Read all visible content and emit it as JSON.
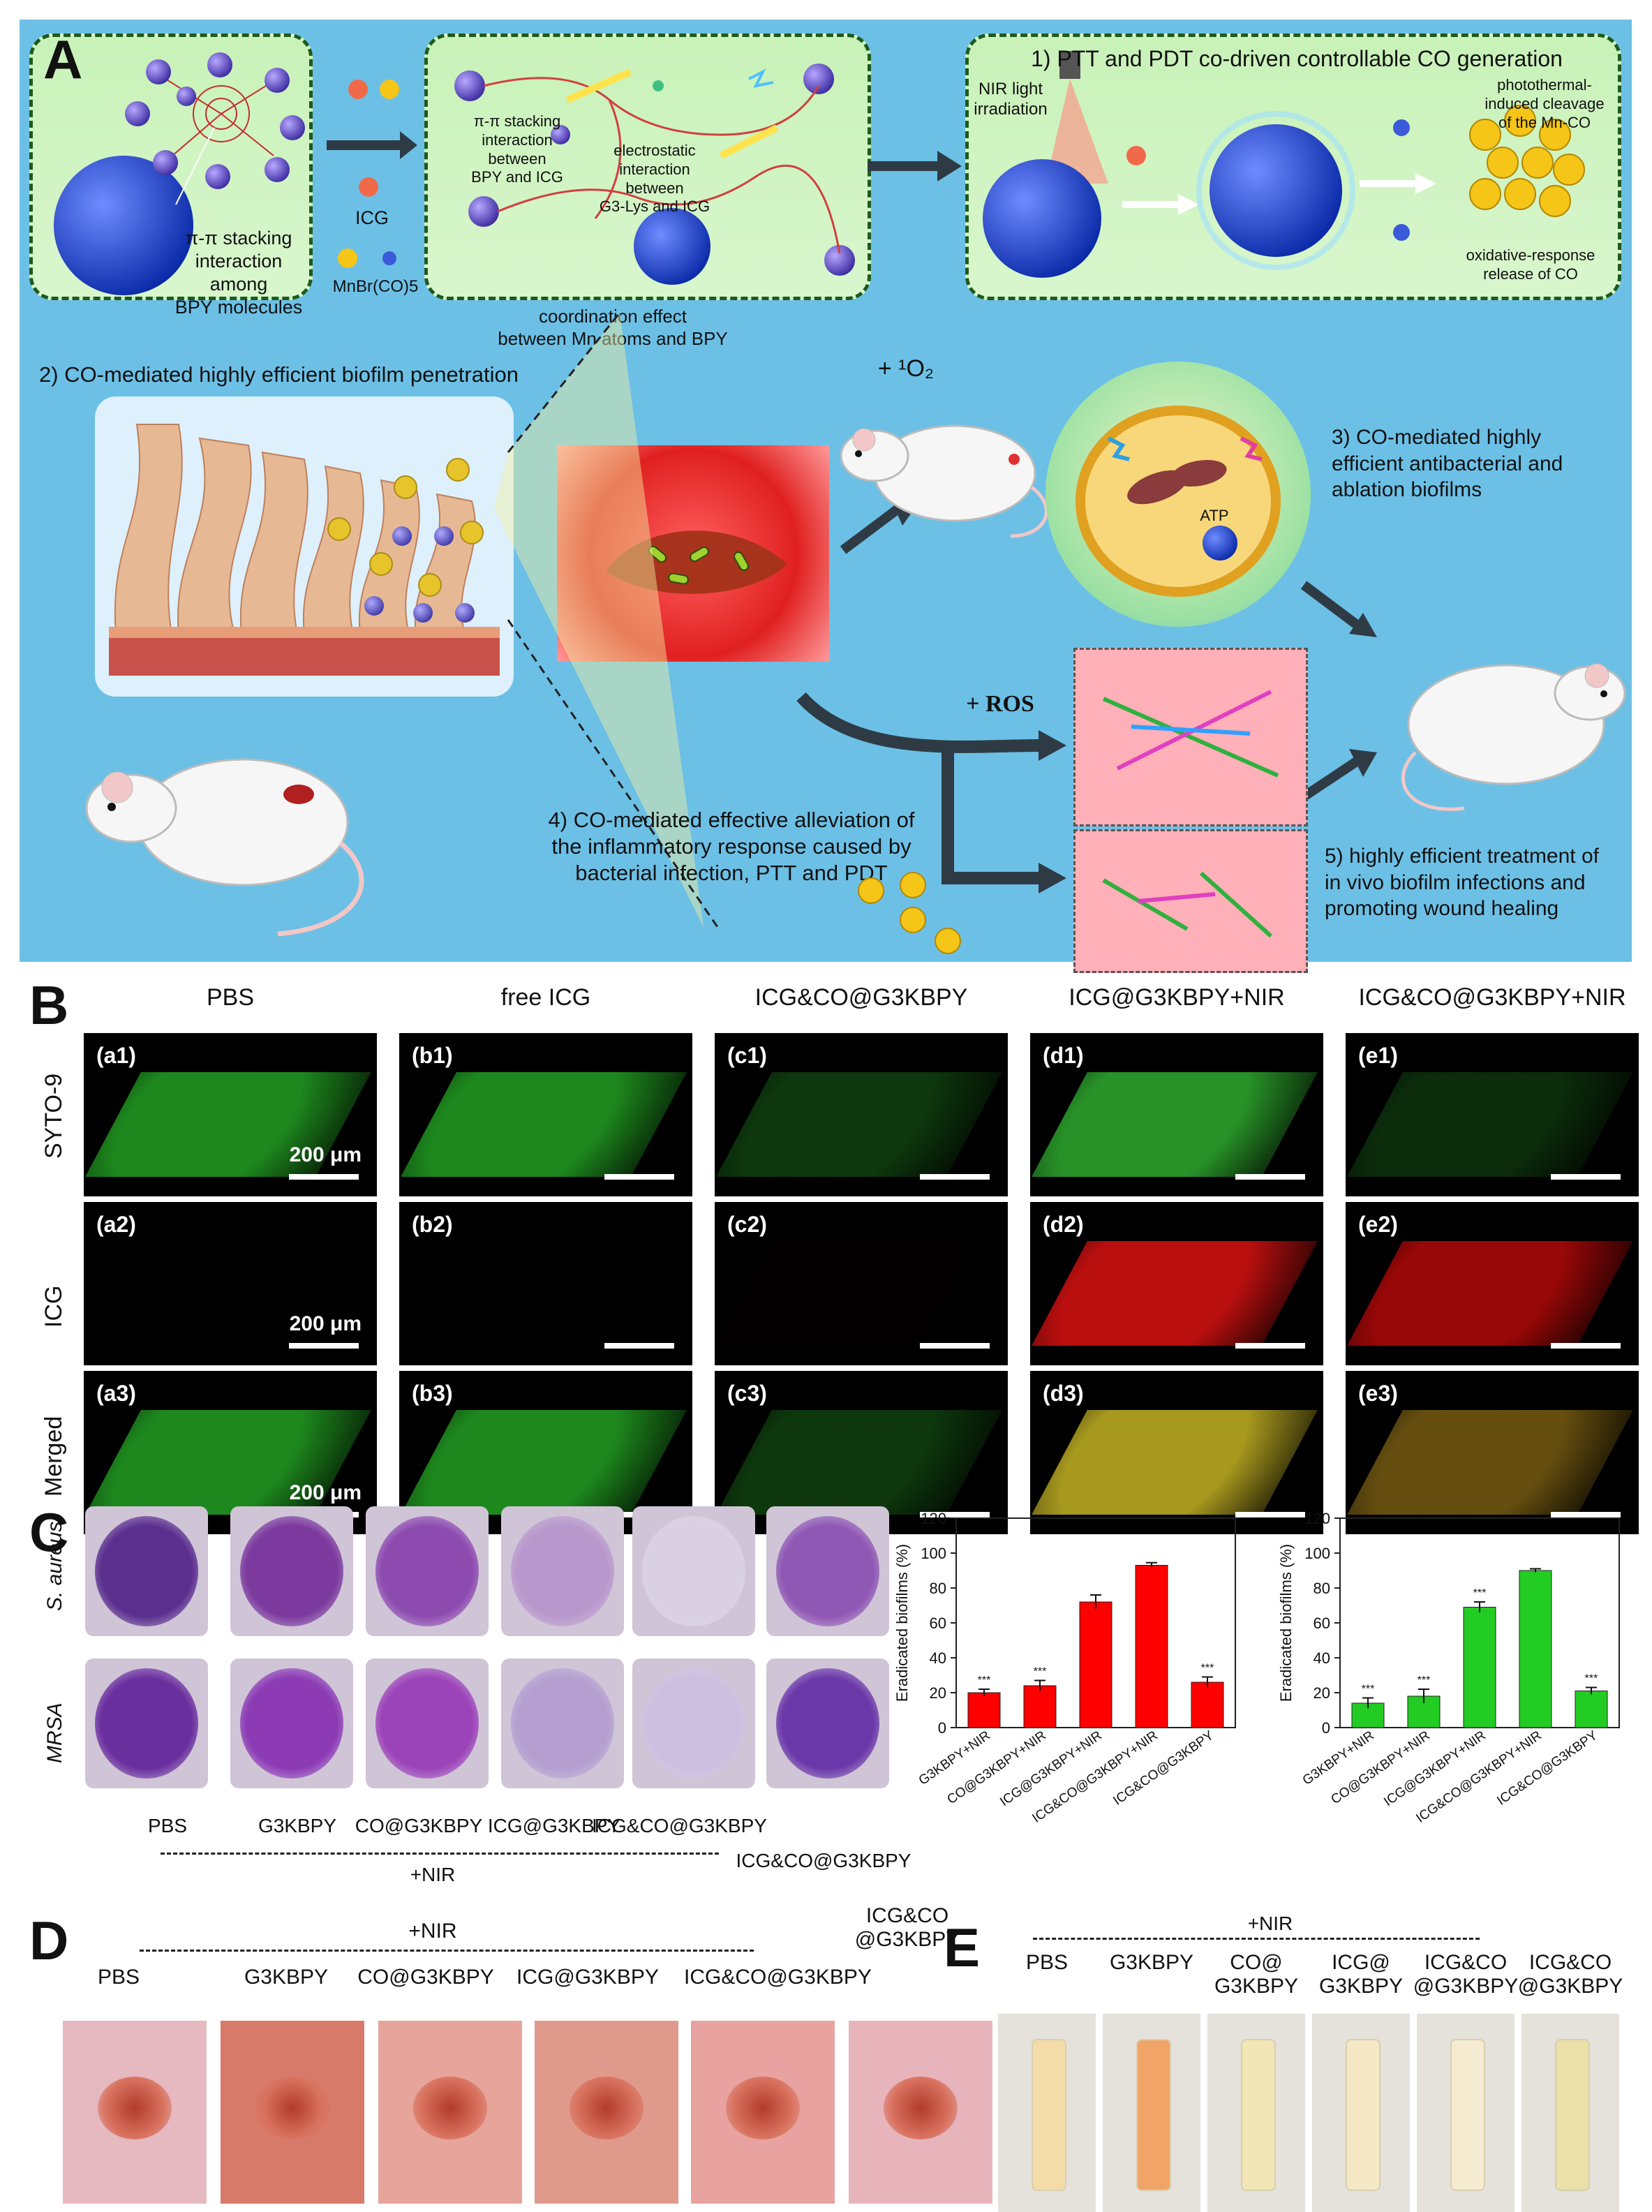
{
  "panels": {
    "A": "A",
    "B": "B",
    "C": "C",
    "D": "D",
    "E": "E"
  },
  "panelA": {
    "box1_label": "π-π stacking\ninteraction among\nBPY molecules",
    "icg_label": "ICG",
    "mn_label": "MnBr(CO)5",
    "box2_label1": "π-π stacking\ninteraction between\nBPY and ICG",
    "box2_label2": "electrostatic\ninteraction between\nG3-Lys and ICG",
    "coordination": "coordination effect\nbetween Mn atoms and BPY",
    "step1": "1) PTT and PDT co-driven controllable CO generation",
    "nir": "NIR light\nirradiation",
    "photothermal": "photothermal-\ninduced cleavage\nof the Mn-CO",
    "oxidative": "oxidative-response\nrelease of CO",
    "step2": "2) CO-mediated highly efficient biofilm penetration",
    "step3": "3) CO-mediated highly\nefficient antibacterial and\nablation biofilms",
    "step4": "4) CO-mediated effective alleviation of\nthe inflammatory response caused by\nbacterial infection, PTT and PDT",
    "step5": "5) highly efficient treatment of\nin vivo biofilm infections and\npromoting wound healing",
    "co": "CO",
    "ros": "+ ROS",
    "plus_o2": "+ ¹O₂",
    "atp": "ATP"
  },
  "panelB": {
    "columns": [
      "PBS",
      "free ICG",
      "ICG&CO@G3KBPY",
      "ICG@G3KBPY+NIR",
      "ICG&CO@G3KBPY+NIR"
    ],
    "rows": [
      "SYTO-9",
      "ICG",
      "Merged"
    ],
    "labels": [
      [
        "(a1)",
        "(b1)",
        "(c1)",
        "(d1)",
        "(e1)"
      ],
      [
        "(a2)",
        "(b2)",
        "(c2)",
        "(d2)",
        "(e2)"
      ],
      [
        "(a3)",
        "(b3)",
        "(c3)",
        "(d3)",
        "(e3)"
      ]
    ],
    "scale": "200 μm"
  },
  "panelC": {
    "rows": [
      "S. aureus",
      "MRSA"
    ],
    "wells": [
      "PBS",
      "G3KBPY",
      "CO@G3KBPY",
      "ICG@G3KBPY",
      "ICG&CO@G3KBPY"
    ],
    "extra_well": "ICG&CO@G3KBPY",
    "nir": "+NIR"
  },
  "chart_data": [
    {
      "type": "bar",
      "categories": [
        "G3KBPY+NIR",
        "CO@G3KBPY+NIR",
        "ICG@G3KBPY+NIR",
        "ICG&CO@G3KBPY+NIR",
        "ICG&CO@G3KBPY"
      ],
      "values": [
        20,
        24,
        72,
        93,
        26
      ],
      "errors": [
        2,
        3,
        4,
        1.5,
        3
      ],
      "significance": [
        "***",
        "***",
        "",
        "",
        "***"
      ],
      "ylabel": "Eradicated biofilms (%)",
      "ylim": [
        0,
        120
      ],
      "yticks": [
        0,
        20,
        40,
        60,
        80,
        100,
        120
      ],
      "color": "#ff0000"
    },
    {
      "type": "bar",
      "categories": [
        "G3KBPY+NIR",
        "CO@G3KBPY+NIR",
        "ICG@G3KBPY+NIR",
        "ICG&CO@G3KBPY+NIR",
        "ICG&CO@G3KBPY"
      ],
      "values": [
        14,
        18,
        69,
        90,
        21
      ],
      "errors": [
        3,
        4,
        3,
        1,
        2
      ],
      "significance": [
        "***",
        "***",
        "***",
        "",
        "***"
      ],
      "ylabel": "Eradicated biofilms (%)",
      "ylim": [
        0,
        120
      ],
      "yticks": [
        0,
        20,
        40,
        60,
        80,
        100,
        120
      ],
      "color": "#22cc22"
    }
  ],
  "panelD": {
    "nir": "+NIR",
    "labels": [
      "PBS",
      "G3KBPY",
      "CO@G3KBPY",
      "ICG@G3KBPY",
      "ICG&CO@G3KBPY",
      "ICG&CO\n@G3KBPY"
    ]
  },
  "panelE": {
    "nir": "+NIR",
    "labels": [
      "PBS",
      "G3KBPY",
      "CO@\nG3KBPY",
      "ICG@\nG3KBPY",
      "ICG&CO\n@G3KBPY",
      "ICG&CO\n@G3KBPY"
    ]
  },
  "colors": {
    "panelA_bg": "#6cc0e6",
    "box_fill": "#c8f2b8",
    "syto_green": "#1faa1f",
    "icg_red": "#e01010",
    "crystal_violet": "#8a3fb0"
  }
}
